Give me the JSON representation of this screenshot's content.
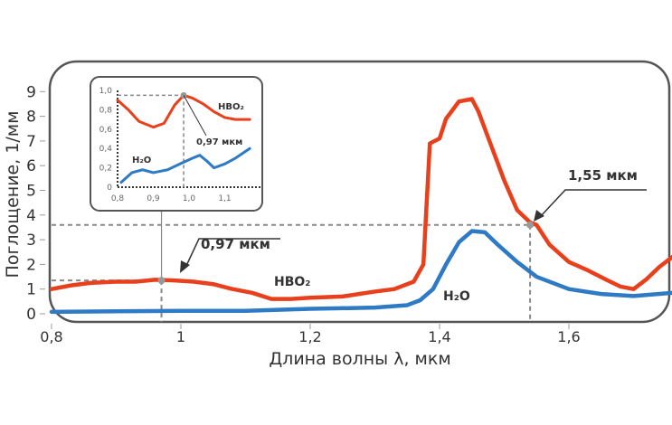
{
  "chart_data": [
    {
      "type": "line",
      "xlabel": "Длина волны λ, мкм",
      "ylabel": "Поглощение, 1/мм",
      "xlim": [
        0.8,
        1.76
      ],
      "ylim": [
        0,
        9
      ],
      "xticks": [
        "0,8",
        "1",
        "1,2",
        "1,4",
        "1,6"
      ],
      "xtick_values": [
        0.8,
        1.0,
        1.2,
        1.4,
        1.6
      ],
      "yticks": [
        "0",
        "1",
        "2",
        "3",
        "4",
        "5",
        "6",
        "7",
        "8",
        "9"
      ],
      "grid": false,
      "series": [
        {
          "name": "HBO₂",
          "color": "#e8401c",
          "x": [
            0.8,
            0.83,
            0.86,
            0.9,
            0.93,
            0.96,
            0.99,
            1.02,
            1.05,
            1.08,
            1.11,
            1.14,
            1.17,
            1.2,
            1.25,
            1.3,
            1.33,
            1.36,
            1.375,
            1.385,
            1.4,
            1.41,
            1.43,
            1.45,
            1.46,
            1.48,
            1.5,
            1.52,
            1.54,
            1.55,
            1.57,
            1.6,
            1.63,
            1.66,
            1.68,
            1.7,
            1.72,
            1.74,
            1.76
          ],
          "y": [
            1.0,
            1.15,
            1.25,
            1.3,
            1.3,
            1.38,
            1.35,
            1.3,
            1.2,
            1.0,
            0.85,
            0.6,
            0.6,
            0.65,
            0.7,
            0.9,
            1.0,
            1.3,
            2.0,
            6.9,
            7.1,
            7.9,
            8.6,
            8.7,
            8.2,
            6.8,
            5.4,
            4.2,
            3.7,
            3.6,
            2.8,
            2.1,
            1.75,
            1.35,
            1.1,
            1.0,
            1.4,
            1.9,
            2.3
          ]
        },
        {
          "name": "H₂O",
          "color": "#2e7ac4",
          "x": [
            0.8,
            0.9,
            1.0,
            1.1,
            1.2,
            1.3,
            1.35,
            1.37,
            1.39,
            1.41,
            1.43,
            1.45,
            1.47,
            1.49,
            1.52,
            1.55,
            1.6,
            1.65,
            1.7,
            1.76
          ],
          "y": [
            0.08,
            0.1,
            0.12,
            0.12,
            0.2,
            0.25,
            0.35,
            0.55,
            1.0,
            2.0,
            2.9,
            3.35,
            3.3,
            2.8,
            2.1,
            1.5,
            1.0,
            0.8,
            0.72,
            0.85
          ]
        }
      ],
      "annotations": [
        {
          "label": "0,97 мкм",
          "x": 0.97,
          "y": 1.35
        },
        {
          "label": "1,55 мкм",
          "x": 1.54,
          "y": 3.6
        }
      ]
    },
    {
      "type": "line",
      "xlim": [
        0.8,
        1.17
      ],
      "ylim": [
        0,
        1.0
      ],
      "xticks": [
        "0,8",
        "0,9",
        "1,0",
        "1,1"
      ],
      "xtick_values": [
        0.8,
        0.9,
        1.0,
        1.1
      ],
      "yticks": [
        "0",
        "0,2",
        "0,4",
        "0,6",
        "0,8",
        "1,0"
      ],
      "ytick_values": [
        0,
        0.2,
        0.4,
        0.6,
        0.8,
        1.0
      ],
      "series": [
        {
          "name": "HBO₂",
          "color": "#e8401c",
          "x": [
            0.8,
            0.83,
            0.86,
            0.9,
            0.93,
            0.96,
            0.985,
            1.01,
            1.04,
            1.07,
            1.1,
            1.13,
            1.17
          ],
          "y": [
            0.9,
            0.8,
            0.68,
            0.62,
            0.66,
            0.85,
            0.95,
            0.92,
            0.86,
            0.78,
            0.72,
            0.7,
            0.7
          ]
        },
        {
          "name": "H₂O",
          "color": "#2e7ac4",
          "x": [
            0.81,
            0.84,
            0.87,
            0.9,
            0.94,
            0.98,
            1.01,
            1.03,
            1.05,
            1.07,
            1.1,
            1.13,
            1.17
          ],
          "y": [
            0.05,
            0.15,
            0.18,
            0.15,
            0.18,
            0.25,
            0.3,
            0.33,
            0.27,
            0.2,
            0.24,
            0.3,
            0.4
          ]
        }
      ],
      "annotations": [
        {
          "label": "0,97 мкм",
          "x": 0.985,
          "y": 0.95
        }
      ]
    }
  ]
}
